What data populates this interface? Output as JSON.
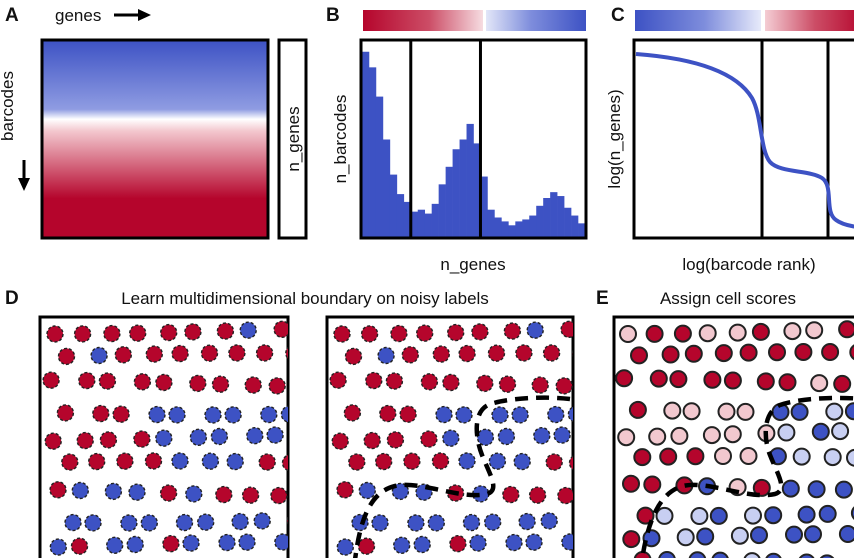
{
  "panels": {
    "A": {
      "letter": "A",
      "x_label": "genes",
      "y_label": "barcodes",
      "side_label": "n_genes"
    },
    "B": {
      "letter": "B",
      "x_label": "n_genes",
      "y_label": "n_barcodes",
      "histogram": [
        0.95,
        0.87,
        0.72,
        0.5,
        0.32,
        0.22,
        0.18,
        0.13,
        0.14,
        0.12,
        0.17,
        0.27,
        0.36,
        0.45,
        0.5,
        0.58,
        0.48,
        0.31,
        0.14,
        0.1,
        0.08,
        0.06,
        0.08,
        0.09,
        0.11,
        0.16,
        0.2,
        0.23,
        0.21,
        0.15,
        0.11,
        0.07
      ],
      "histogram_ymax": 1,
      "dividers_bins": [
        7,
        17
      ]
    },
    "C": {
      "letter": "C",
      "x_label": "log(barcode rank)",
      "y_label": "log(n_genes)"
    },
    "D": {
      "letter": "D",
      "title": "Learn multidimensional boundary on noisy labels"
    },
    "E": {
      "letter": "E",
      "title": "Assign cell scores"
    }
  },
  "colors": {
    "red": "#b5052c",
    "blue": "#3d52c4",
    "white": "#ffffff",
    "pink": "#f2c8cf",
    "light_blue": "#c8cff2",
    "frame": "#000000",
    "boundary": "#000000",
    "point_outline": "#222222"
  },
  "icons": [
    "arrow-right-icon",
    "arrow-down-icon"
  ]
}
